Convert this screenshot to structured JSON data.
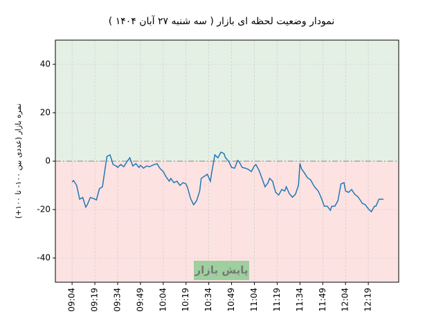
{
  "chart_data": {
    "type": "line",
    "title": "نمودار وضعیت لحظه ای بازار   ( سه شنبه ۲۷ آبان ۱۴۰۴ )",
    "y_label": "نمره بازار (عددی بین ۱۰۰- تا ۱۰۰+)",
    "annotation": "پایش بازار",
    "x": [
      "09:04",
      "09:05",
      "09:07",
      "09:09",
      "09:11",
      "09:13",
      "09:14",
      "09:16",
      "09:18",
      "09:20",
      "09:22",
      "09:24",
      "09:26",
      "09:27",
      "09:29",
      "09:31",
      "09:33",
      "09:34",
      "09:36",
      "09:38",
      "09:40",
      "09:42",
      "09:44",
      "09:46",
      "09:48",
      "09:49",
      "09:51",
      "09:53",
      "09:55",
      "09:58",
      "10:00",
      "10:02",
      "10:04",
      "10:06",
      "10:08",
      "10:09",
      "10:11",
      "10:13",
      "10:15",
      "10:17",
      "10:19",
      "10:20",
      "10:22",
      "10:24",
      "10:26",
      "10:28",
      "10:29",
      "10:31",
      "10:33",
      "10:35",
      "10:36",
      "10:38",
      "10:40",
      "10:42",
      "10:44",
      "10:45",
      "10:47",
      "10:49",
      "10:51",
      "10:53",
      "10:54",
      "10:56",
      "10:58",
      "11:00",
      "11:02",
      "11:04",
      "11:05",
      "11:07",
      "11:09",
      "11:11",
      "11:13",
      "11:14",
      "11:16",
      "11:18",
      "11:20",
      "11:22",
      "11:24",
      "11:25",
      "11:27",
      "11:29",
      "11:31",
      "11:33",
      "11:34",
      "11:35",
      "11:37",
      "11:39",
      "11:41",
      "11:43",
      "11:44",
      "11:46",
      "11:48",
      "11:50",
      "11:52",
      "11:54",
      "11:55",
      "11:57",
      "11:59",
      "12:01",
      "12:03",
      "12:04",
      "12:06",
      "12:08",
      "12:10",
      "12:12",
      "12:14",
      "12:15",
      "12:17",
      "12:19",
      "12:21",
      "12:23",
      "12:24",
      "12:26",
      "12:29"
    ],
    "series": [
      {
        "color": "#1f77b4",
        "values": [
          -8.6,
          -8,
          -10,
          -15.7,
          -15,
          -19,
          -18,
          -15,
          -15.4,
          -16,
          -11.4,
          -10.6,
          -2,
          2,
          2.6,
          -1.4,
          -2,
          -2.6,
          -1.4,
          -2.3,
          -0.3,
          1.4,
          -2,
          -1,
          -2.6,
          -1.7,
          -2.9,
          -2,
          -2.3,
          -1.4,
          -1.1,
          -3.1,
          -4.3,
          -6.6,
          -8.3,
          -7.1,
          -8.9,
          -8.3,
          -10,
          -8.9,
          -9.4,
          -10.9,
          -15.4,
          -18,
          -16.3,
          -12.3,
          -7.1,
          -6.3,
          -5.4,
          -8.3,
          -4.3,
          2.6,
          1.4,
          3.7,
          3.1,
          1.4,
          0,
          -2.6,
          -2.9,
          0.3,
          -0.3,
          -2.6,
          -2.9,
          -3.4,
          -4.3,
          -2,
          -1.4,
          -3.7,
          -7.1,
          -10.6,
          -8.9,
          -7.1,
          -8.3,
          -12.9,
          -14,
          -11.7,
          -12.3,
          -10.6,
          -13.4,
          -14.9,
          -13.7,
          -10,
          -0.9,
          -3.1,
          -4.9,
          -6.9,
          -7.7,
          -10,
          -10.9,
          -12.3,
          -15.1,
          -18.6,
          -18.6,
          -20.3,
          -18.6,
          -18.6,
          -16.3,
          -9.4,
          -8.9,
          -12.3,
          -12.9,
          -11.7,
          -13.7,
          -14.6,
          -16.3,
          -17.4,
          -18,
          -19.7,
          -20.9,
          -18.6,
          -18.6,
          -15.7,
          -15.7
        ]
      }
    ],
    "xlim": [
      "08:53",
      "12:39"
    ],
    "xticks": [
      "09:04",
      "09:19",
      "09:34",
      "09:49",
      "10:04",
      "10:19",
      "10:34",
      "10:49",
      "11:04",
      "11:19",
      "11:34",
      "11:49",
      "12:04",
      "12:19"
    ],
    "ylim": [
      -50,
      50
    ],
    "yticks": [
      -40,
      -20,
      0,
      20,
      40
    ],
    "grid": true,
    "background_colors": {
      "above": "#e5f0e5",
      "below": "#fde2e2"
    },
    "annotation_color": "#9fcf9f"
  }
}
